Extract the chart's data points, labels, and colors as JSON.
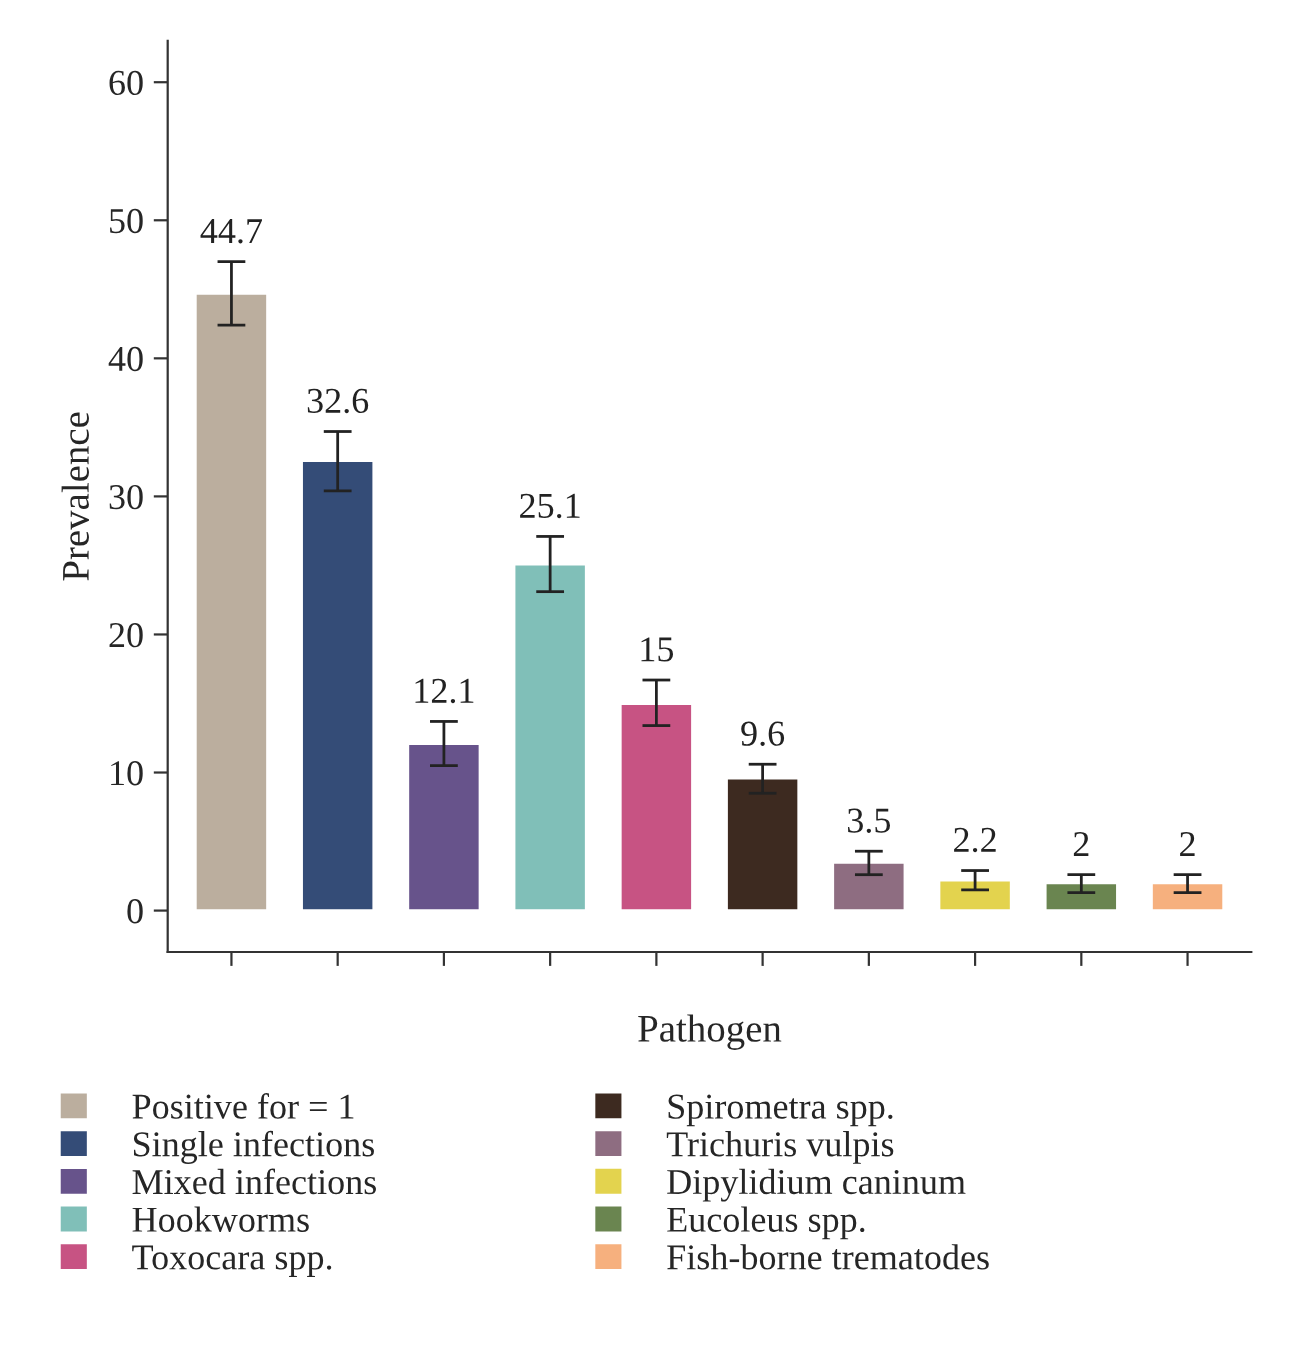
{
  "chart_data": {
    "type": "bar",
    "xlabel": "Pathogen",
    "ylabel": "Prevalence",
    "categories": [
      null,
      null,
      null,
      null,
      null,
      null,
      null,
      null,
      null,
      null
    ],
    "series": [
      {
        "name": "Positive for = 1",
        "color": "#bbae9e",
        "values": [
          44.7,
          null,
          null,
          null,
          null,
          null,
          null,
          null,
          null,
          null
        ],
        "errors": [
          [
            42.4,
            47.0
          ],
          null,
          null,
          null,
          null,
          null,
          null,
          null,
          null,
          null
        ]
      },
      {
        "name": "Single infections",
        "color": "#344c77",
        "values": [
          null,
          32.6,
          null,
          null,
          null,
          null,
          null,
          null,
          null,
          null
        ],
        "errors": [
          null,
          [
            30.4,
            34.7
          ],
          null,
          null,
          null,
          null,
          null,
          null,
          null,
          null
        ]
      },
      {
        "name": "Mixed infections",
        "color": "#67538b",
        "values": [
          null,
          null,
          12.1,
          null,
          null,
          null,
          null,
          null,
          null,
          null
        ],
        "errors": [
          null,
          null,
          [
            10.5,
            13.7
          ],
          null,
          null,
          null,
          null,
          null,
          null,
          null
        ]
      },
      {
        "name": "Hookworms",
        "color": "#80bfb8",
        "values": [
          null,
          null,
          null,
          25.1,
          null,
          null,
          null,
          null,
          null,
          null
        ],
        "errors": [
          null,
          null,
          null,
          [
            23.1,
            27.1
          ],
          null,
          null,
          null,
          null,
          null,
          null
        ]
      },
      {
        "name": "Toxocara spp.",
        "color": "#c75383",
        "values": [
          null,
          null,
          null,
          null,
          15,
          null,
          null,
          null,
          null,
          null
        ],
        "errors": [
          null,
          null,
          null,
          null,
          [
            13.4,
            16.7
          ],
          null,
          null,
          null,
          null,
          null
        ]
      },
      {
        "name": "Spirometra spp.",
        "color": "#3d2a20",
        "values": [
          null,
          null,
          null,
          null,
          null,
          9.6,
          null,
          null,
          null,
          null
        ],
        "errors": [
          null,
          null,
          null,
          null,
          null,
          [
            8.5,
            10.6
          ],
          null,
          null,
          null,
          null
        ]
      },
      {
        "name": "Trichuris vulpis",
        "color": "#8e6d81",
        "values": [
          null,
          null,
          null,
          null,
          null,
          null,
          3.5,
          null,
          null,
          null
        ],
        "errors": [
          null,
          null,
          null,
          null,
          null,
          null,
          [
            2.6,
            4.3
          ],
          null,
          null,
          null
        ]
      },
      {
        "name": "Dipylidium caninum",
        "color": "#e3d34e",
        "values": [
          null,
          null,
          null,
          null,
          null,
          null,
          null,
          2.2,
          null,
          null
        ],
        "errors": [
          null,
          null,
          null,
          null,
          null,
          null,
          null,
          [
            1.5,
            2.9
          ],
          null,
          null
        ]
      },
      {
        "name": "Eucoleus spp.",
        "color": "#6a8550",
        "values": [
          null,
          null,
          null,
          null,
          null,
          null,
          null,
          null,
          2,
          null
        ],
        "errors": [
          null,
          null,
          null,
          null,
          null,
          null,
          null,
          null,
          [
            1.3,
            2.6
          ],
          null
        ]
      },
      {
        "name": "Fish-borne trematodes",
        "color": "#f6b07e",
        "values": [
          null,
          null,
          null,
          null,
          null,
          null,
          null,
          null,
          null,
          2
        ],
        "errors": [
          null,
          null,
          null,
          null,
          null,
          null,
          null,
          null,
          null,
          [
            1.3,
            2.6
          ]
        ]
      }
    ],
    "ylim": [
      -3,
      63
    ],
    "yticks": [
      0,
      10,
      20,
      30,
      40,
      50,
      60
    ],
    "data_labels": true,
    "grid": false,
    "legend": "bottom"
  }
}
